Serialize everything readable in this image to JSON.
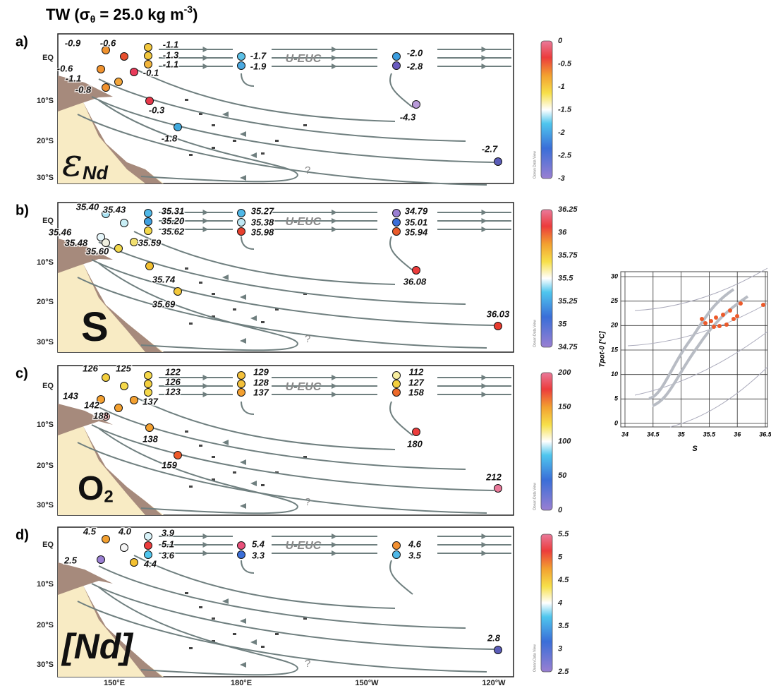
{
  "title": {
    "pre": "TW (σ",
    "sub": "θ",
    "mid": " = 25.0 kg m",
    "sup": "-3",
    "post": ")"
  },
  "lat_labels": [
    "EQ",
    "10°S",
    "20°S",
    "30°S"
  ],
  "lon_labels": [
    "150°E",
    "180°E",
    "150°W",
    "120°W"
  ],
  "current": "U-EUC",
  "unknown_marker": "?",
  "colorbar_source": "Ocean Data View",
  "panels": [
    {
      "label": "a)",
      "name": [
        {
          "text": "ε"
        },
        {
          "text": "Nd",
          "sub": true
        }
      ],
      "colorbar_ticks": [
        "0",
        "-0.5",
        "-1",
        "-1.5",
        "-2",
        "-2.5",
        "-3"
      ],
      "points": [
        {
          "label": "-0.9",
          "color": "#f0922e"
        },
        {
          "label": "-0.6",
          "color": "#e8502e"
        },
        {
          "label": "-1.1",
          "color": "#f2c73d"
        },
        {
          "label": "-1.3",
          "color": "#f2c73d"
        },
        {
          "label": "-1.1",
          "color": "#f2b43a"
        },
        {
          "label": "-1.7",
          "color": "#5cc0e6"
        },
        {
          "label": "-1.9",
          "color": "#4aa8e0"
        },
        {
          "label": "-2.0",
          "color": "#3b9ee0"
        },
        {
          "label": "-2.8",
          "color": "#6a5bc0"
        },
        {
          "label": "-0.6",
          "color": "#f0922e"
        },
        {
          "label": "-1.1",
          "color": "#f2a53a"
        },
        {
          "label": "-0.1",
          "color": "#e83b5a"
        },
        {
          "label": "-0.8",
          "color": "#f0922e"
        },
        {
          "label": "-0.3",
          "color": "#e8384a"
        },
        {
          "label": "-1.8",
          "color": "#3fa8dc"
        },
        {
          "label": "-4.3",
          "color": "#b89ad8"
        },
        {
          "label": "-2.7",
          "color": "#5b5db8"
        }
      ]
    },
    {
      "label": "b)",
      "name": [
        {
          "text": "S"
        }
      ],
      "colorbar_ticks": [
        "36.25",
        "36",
        "35.75",
        "35.5",
        "35.25",
        "35",
        "34.75"
      ],
      "points": [
        {
          "label": "35.40",
          "color": "#a8e2f2"
        },
        {
          "label": "35.43",
          "color": "#c8eef5"
        },
        {
          "label": "35.31",
          "color": "#4fb8e8"
        },
        {
          "label": "35.20",
          "color": "#3fa0e0"
        },
        {
          "label": "35.62",
          "color": "#f2d84a"
        },
        {
          "label": "35.27",
          "color": "#4fb8e8"
        },
        {
          "label": "35.38",
          "color": "#bfe8f4"
        },
        {
          "label": "35.98",
          "color": "#e8402e"
        },
        {
          "label": "34.79",
          "color": "#9a7fd2"
        },
        {
          "label": "35.01",
          "color": "#3a6ed8"
        },
        {
          "label": "35.94",
          "color": "#ea5a2a"
        },
        {
          "label": "35.46",
          "color": "#e6f6fa"
        },
        {
          "label": "35.48",
          "color": "#f0f0e0"
        },
        {
          "label": "35.60",
          "color": "#f2d84a"
        },
        {
          "label": "35.59",
          "color": "#f2e070"
        },
        {
          "label": "35.74",
          "color": "#f3c030"
        },
        {
          "label": "35.69",
          "color": "#f3c83a"
        },
        {
          "label": "36.08",
          "color": "#ec3c3c"
        },
        {
          "label": "36.03",
          "color": "#e83b2e"
        }
      ]
    },
    {
      "label": "c)",
      "name": [
        {
          "text": "O"
        },
        {
          "text": "2",
          "sub": true
        }
      ],
      "colorbar_ticks": [
        "200",
        "150",
        "100",
        "50",
        "0"
      ],
      "points": [
        {
          "label": "126",
          "color": "#f3cf3e"
        },
        {
          "label": "125",
          "color": "#f5d84a"
        },
        {
          "label": "122",
          "color": "#f5d84a"
        },
        {
          "label": "126",
          "color": "#f3cf3e"
        },
        {
          "label": "123",
          "color": "#f5d84a"
        },
        {
          "label": "129",
          "color": "#f3c03a"
        },
        {
          "label": "128",
          "color": "#f3c03a"
        },
        {
          "label": "137",
          "color": "#f3a030"
        },
        {
          "label": "112",
          "color": "#f8eea0"
        },
        {
          "label": "127",
          "color": "#f3cf3e"
        },
        {
          "label": "158",
          "color": "#ee6a2a"
        },
        {
          "label": "143",
          "color": "#f3a030"
        },
        {
          "label": "142",
          "color": "#f3a030"
        },
        {
          "label": "188",
          "color": "#ec3c3c"
        },
        {
          "label": "137",
          "color": "#f3a030"
        },
        {
          "label": "138",
          "color": "#f3a030"
        },
        {
          "label": "159",
          "color": "#ee5a2a"
        },
        {
          "label": "180",
          "color": "#ec3c3c"
        },
        {
          "label": "212",
          "color": "#e9799a"
        }
      ]
    },
    {
      "label": "d)",
      "name": [
        {
          "text": "[Nd]"
        }
      ],
      "colorbar_ticks": [
        "5.5",
        "5",
        "4.5",
        "4",
        "3.5",
        "3",
        "2.5"
      ],
      "points": [
        {
          "label": "4.5",
          "color": "#f3a030"
        },
        {
          "label": "4.0",
          "color": "#f5f5f5"
        },
        {
          "label": "3.9",
          "color": "#d8f2f8"
        },
        {
          "label": "5.1",
          "color": "#ec3c3c"
        },
        {
          "label": "3.6",
          "color": "#4fc6ee"
        },
        {
          "label": "5.4",
          "color": "#e9507a"
        },
        {
          "label": "3.3",
          "color": "#3a6ed8"
        },
        {
          "label": "4.6",
          "color": "#f39030"
        },
        {
          "label": "3.5",
          "color": "#4fb8e8"
        },
        {
          "label": "2.5",
          "color": "#9a7fd2"
        },
        {
          "label": "4.4",
          "color": "#f3c030"
        },
        {
          "label": "2.8",
          "color": "#5b5db8"
        }
      ]
    }
  ],
  "ts_diagram": {
    "y_label": "Tpot-0 [°C]",
    "x_label": "S",
    "xticks": [
      "34",
      "34.5",
      "35",
      "35.5",
      "36",
      "36.5"
    ],
    "yticks": [
      "0",
      "5",
      "10",
      "15",
      "20",
      "25",
      "30"
    ]
  }
}
